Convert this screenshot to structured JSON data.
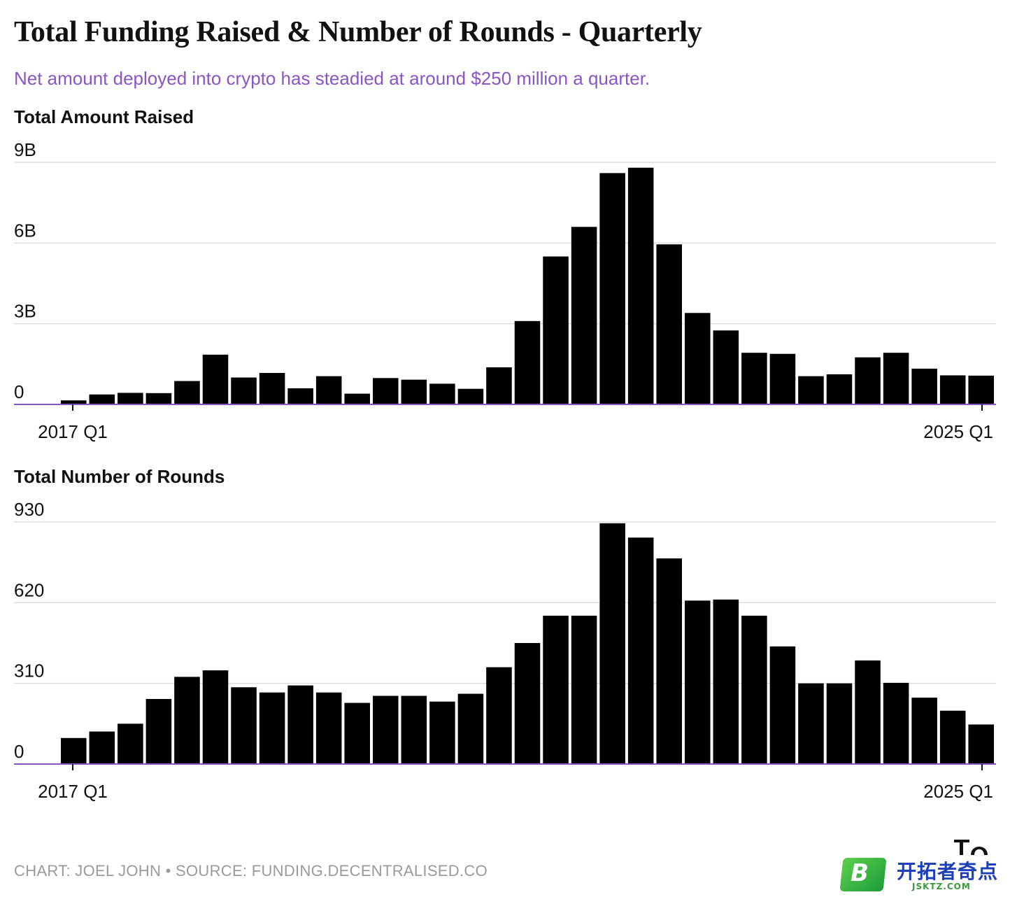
{
  "title": "Total Funding Raised & Number of Rounds - Quarterly",
  "subtitle": "Net amount deployed into crypto has steadied at around $250 million a quarter.",
  "footer": "CHART: JOEL JOHN • SOURCE: FUNDING.DECENTRALISED.CO",
  "watermark": {
    "brand_cn": "开拓者奇点",
    "domain": "JSKTZ.COM",
    "letter": "B"
  },
  "colors": {
    "bar": "#000000",
    "baseline": "#8a55c4",
    "grid": "#dddddd",
    "subtitle": "#8a55c4",
    "footer": "#9a9a9a"
  },
  "chart_data": [
    {
      "type": "bar",
      "title": "Total Amount Raised",
      "x_tick_labels": [
        "2017 Q1",
        "2025 Q1"
      ],
      "y_ticks": [
        0,
        3,
        6,
        9
      ],
      "y_tick_labels": [
        "0",
        "3B",
        "6B",
        "9B"
      ],
      "ylim": [
        0,
        9
      ],
      "unit": "B",
      "grid": true,
      "values": [
        0.15,
        0.37,
        0.43,
        0.42,
        0.87,
        1.85,
        1.0,
        1.17,
        0.6,
        1.05,
        0.4,
        0.98,
        0.92,
        0.77,
        0.58,
        1.38,
        3.1,
        5.5,
        6.6,
        8.6,
        8.8,
        5.95,
        3.4,
        2.75,
        1.92,
        1.88,
        1.05,
        1.12,
        1.75,
        1.92,
        1.33,
        1.08,
        1.07
      ]
    },
    {
      "type": "bar",
      "title": "Total Number of Rounds",
      "x_tick_labels": [
        "2017 Q1",
        "2025 Q1"
      ],
      "y_ticks": [
        0,
        310,
        620,
        930
      ],
      "y_tick_labels": [
        "0",
        "310",
        "620",
        "930"
      ],
      "ylim": [
        0,
        930
      ],
      "grid": true,
      "values": [
        100,
        125,
        155,
        250,
        335,
        360,
        295,
        275,
        302,
        275,
        235,
        262,
        262,
        240,
        270,
        372,
        465,
        570,
        570,
        925,
        870,
        790,
        628,
        632,
        570,
        452,
        310,
        310,
        398,
        312,
        255,
        205,
        152
      ]
    }
  ]
}
